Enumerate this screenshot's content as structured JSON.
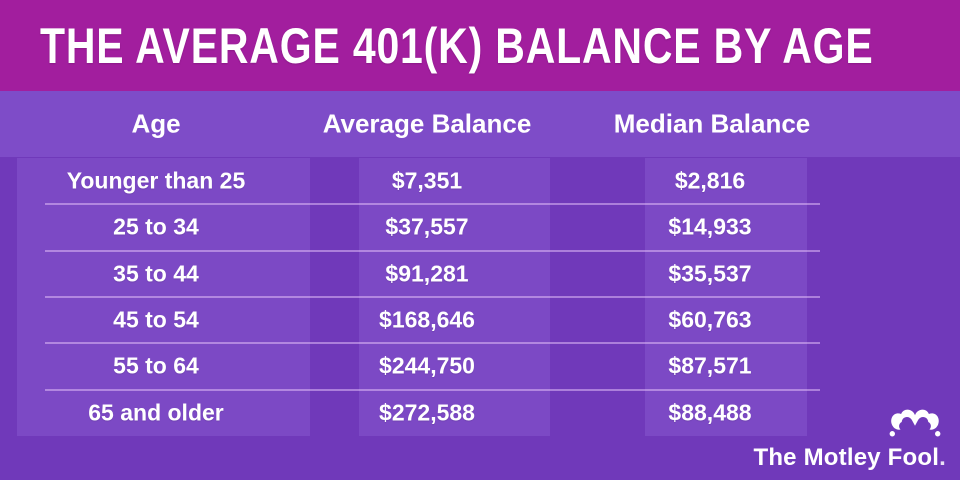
{
  "page": {
    "title": "THE AVERAGE 401(K) BALANCE BY AGE"
  },
  "table": {
    "columns": [
      "Age",
      "Average Balance",
      "Median Balance"
    ],
    "rows": [
      [
        "Younger than 25",
        "$7,351",
        "$2,816"
      ],
      [
        "25 to 34",
        "$37,557",
        "$14,933"
      ],
      [
        "35 to 44",
        "$91,281",
        "$35,537"
      ],
      [
        "45 to 54",
        "$168,646",
        "$60,763"
      ],
      [
        "55 to 64",
        "$244,750",
        "$87,571"
      ],
      [
        "65 and older",
        "$272,588",
        "$88,488"
      ]
    ]
  },
  "chart_data": {
    "type": "table",
    "title": "The Average 401(k) Balance by Age",
    "categories": [
      "Younger than 25",
      "25 to 34",
      "35 to 44",
      "45 to 54",
      "55 to 64",
      "65 and older"
    ],
    "series": [
      {
        "name": "Average Balance",
        "values": [
          7351,
          37557,
          91281,
          168646,
          244750,
          272588
        ]
      },
      {
        "name": "Median Balance",
        "values": [
          2816,
          14933,
          35537,
          60763,
          87571,
          88488
        ]
      }
    ],
    "legend_position": "none",
    "grid": false
  },
  "logo": {
    "text": "The Motley Fool",
    "suffix": "."
  },
  "colors": {
    "title_bar": "#A21E9E",
    "header_band": "#7E4CC8",
    "background": "#7039BA",
    "cell_band": "#7C49C5",
    "divider": "#DEBAF5",
    "text": "#FFFFFF"
  }
}
